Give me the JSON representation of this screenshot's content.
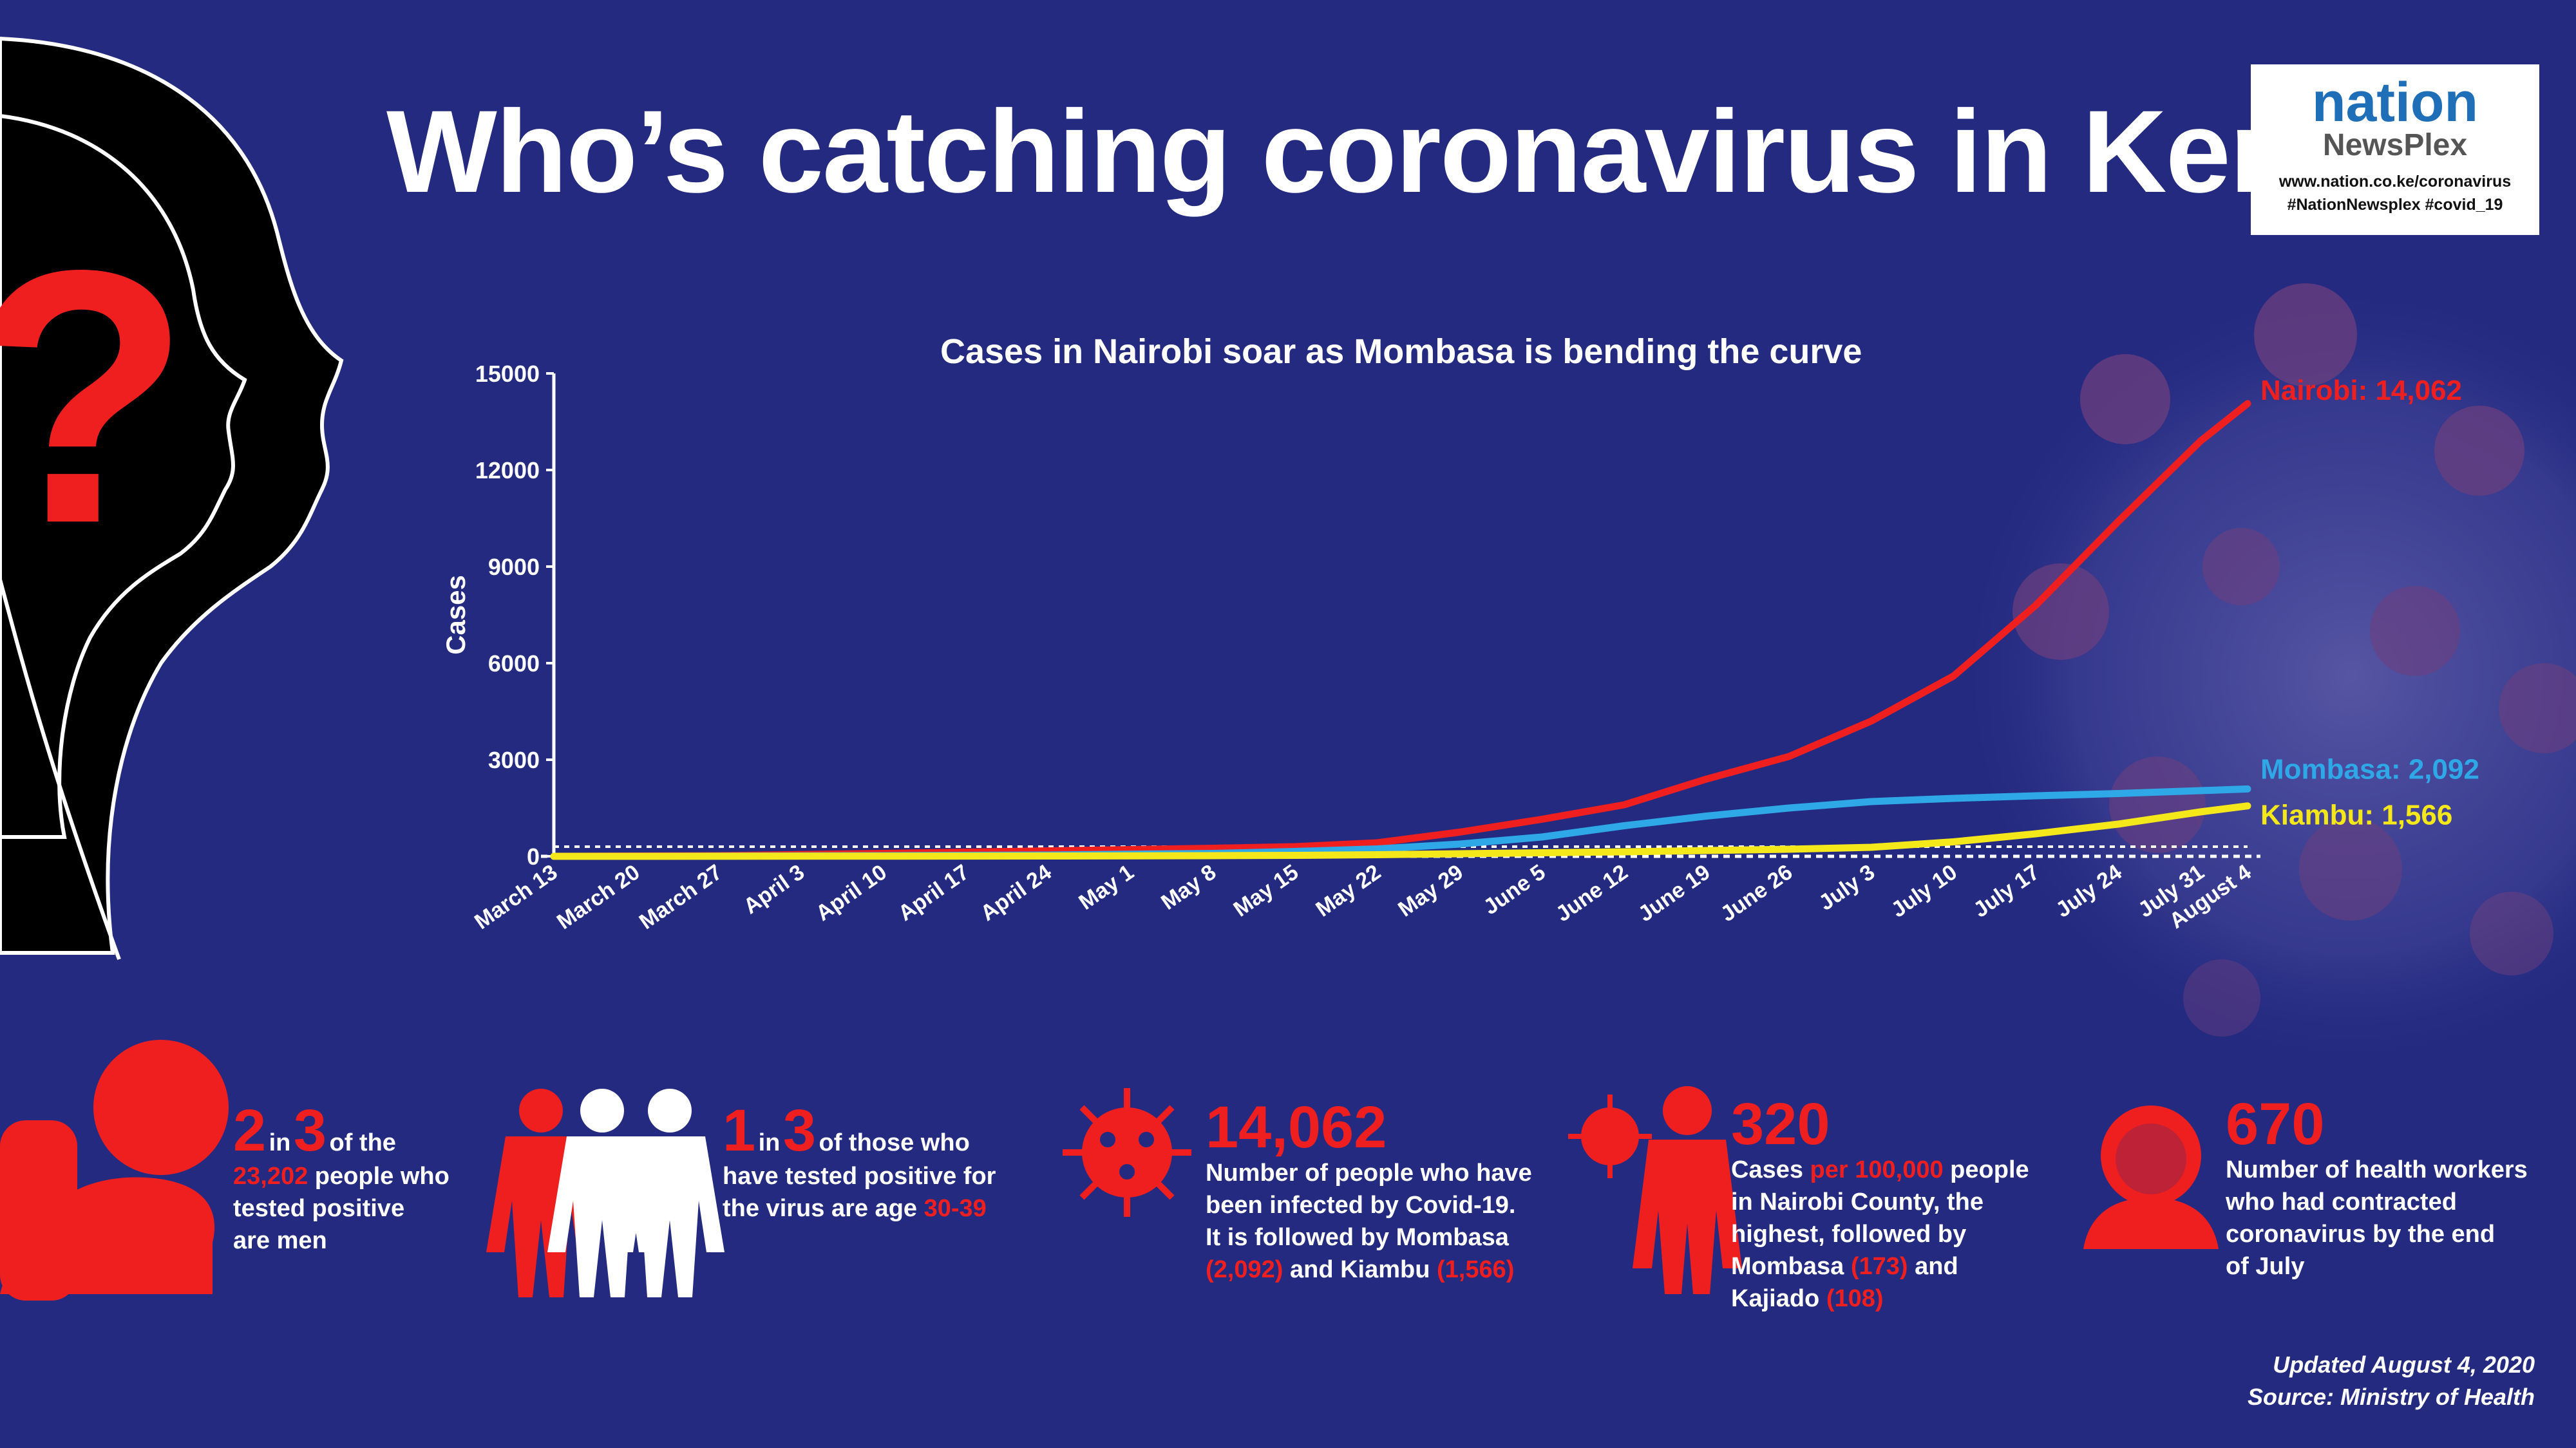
{
  "title": "Who’s catching coronavirus in Kenya?",
  "logo": {
    "brand_top": "nation",
    "brand_bottom": "NewsPlex",
    "url": "www.nation.co.ke/coronavirus",
    "hashtags": "#NationNewsplex #covid_19"
  },
  "colors": {
    "background": "#232a80",
    "nairobi": "#f01f1f",
    "mombasa": "#2ea8e6",
    "kiambu": "#f5e81a",
    "accent": "#f01f1f"
  },
  "chart_data": {
    "type": "line",
    "title": "Cases in Nairobi soar as Mombasa is bending the curve",
    "ylabel": "Cases",
    "xlabel": "",
    "ylim": [
      0,
      15000
    ],
    "yticks": [
      0,
      3000,
      6000,
      9000,
      12000,
      15000
    ],
    "xlim": [
      "2020-03-13",
      "2020-08-04"
    ],
    "xticks": [
      "March 13",
      "March 20",
      "March 27",
      "April 3",
      "April 10",
      "April 17",
      "April 24",
      "May 1",
      "May 8",
      "May 15",
      "May 22",
      "May 29",
      "June 5",
      "June 12",
      "June 19",
      "June 26",
      "July 3",
      "July 10",
      "July 17",
      "July 24",
      "July 31",
      "August 4"
    ],
    "x": [
      "2020-03-13",
      "2020-03-27",
      "2020-04-10",
      "2020-04-24",
      "2020-05-08",
      "2020-05-15",
      "2020-05-22",
      "2020-05-29",
      "2020-06-05",
      "2020-06-12",
      "2020-06-19",
      "2020-06-26",
      "2020-07-03",
      "2020-07-10",
      "2020-07-17",
      "2020-07-24",
      "2020-07-31",
      "2020-08-04"
    ],
    "series": [
      {
        "name": "Nairobi",
        "end_label": "Nairobi: 14,062",
        "color": "#f01f1f",
        "values": [
          0,
          20,
          90,
          170,
          250,
          300,
          420,
          750,
          1150,
          1600,
          2400,
          3100,
          4200,
          5600,
          7800,
          10400,
          12900,
          14062
        ]
      },
      {
        "name": "Mombasa",
        "end_label": "Mombasa: 2,092",
        "color": "#2ea8e6",
        "values": [
          0,
          5,
          20,
          40,
          90,
          150,
          230,
          380,
          600,
          950,
          1250,
          1500,
          1700,
          1800,
          1880,
          1950,
          2040,
          2092
        ]
      },
      {
        "name": "Kiambu",
        "end_label": "Kiambu: 1,566",
        "color": "#f5e81a",
        "values": [
          0,
          2,
          5,
          10,
          20,
          30,
          50,
          80,
          110,
          140,
          180,
          220,
          280,
          450,
          700,
          1000,
          1380,
          1566
        ]
      }
    ]
  },
  "stats": {
    "men": {
      "num1": "2",
      "in": "in",
      "num2": "3",
      "text1": "of the",
      "highlight": "23,202",
      "text2": "people who",
      "text3": "tested positive",
      "text4": "are men"
    },
    "age": {
      "num1": "1",
      "in": "in",
      "num2": "3",
      "text1": "of those who",
      "text2": "have tested positive for",
      "text3": "the virus are age",
      "highlight": "30-39"
    },
    "nairobi": {
      "number": "14,062",
      "l1": "Number of people who have",
      "l2": "been infected by Covid-19.",
      "l3": "It is followed by Mombasa",
      "h1": "(2,092)",
      "and": "and Kiambu",
      "h2": "(1,566)"
    },
    "rate": {
      "number": "320",
      "pre": "Cases",
      "highlight": "per 100,000",
      "post": "people",
      "l2": "in Nairobi County, the",
      "l3": "highest, followed by",
      "l4": "Mombasa",
      "h2": "(173)",
      "and": "and",
      "l5": "Kajiado",
      "h3": "(108)"
    },
    "health": {
      "number": "670",
      "l1": "Number of health workers",
      "l2": "who had contracted",
      "l3": "coronavirus by the end",
      "l4": "of July"
    }
  },
  "footer": {
    "updated": "Updated August 4, 2020",
    "source": "Source: Ministry of Health"
  }
}
